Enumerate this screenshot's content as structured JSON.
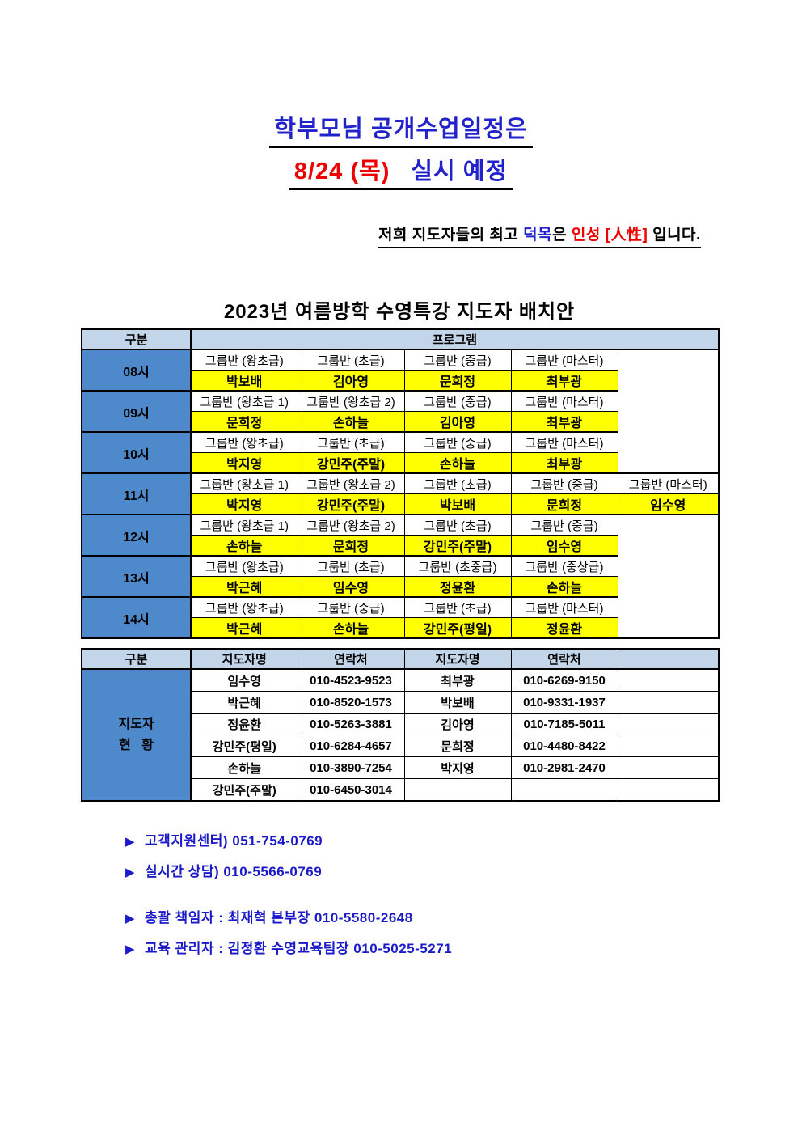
{
  "colors": {
    "title_blue": "#2222CC",
    "title_red": "#EE0000",
    "note_blue": "#1A1AC8",
    "time_cell_blue": "#4E89CB",
    "header_light_blue": "#C3D5E8",
    "highlight_yellow": "#FFFF00"
  },
  "header": {
    "title_line1": "학부모님 공개수업일정은",
    "title_line2_red": "8/24 (목)",
    "title_line2_blue": "실시 예정",
    "subtitle": {
      "p1": "저희 지도자들의 최고 ",
      "p2": "덕목",
      "p3": "은 ",
      "p4": "인성",
      "p5": " [人性] ",
      "p6": "입니다."
    }
  },
  "table_title": "2023년 여름방학 수영특강 지도자 배치안",
  "schedule_table": {
    "header_gubun": "구분",
    "header_program": "프로그램",
    "rows": [
      {
        "time": "08시",
        "classes": [
          "그룹반 (왕초급)",
          "그룹반 (초급)",
          "그룹반 (중급)",
          "그룹반 (마스터)"
        ],
        "teachers": [
          "박보배",
          "김아영",
          "문희정",
          "최부광"
        ]
      },
      {
        "time": "09시",
        "classes": [
          "그룹반 (왕초급 1)",
          "그룹반 (왕초급 2)",
          "그룹반 (중급)",
          "그룹반 (마스터)"
        ],
        "teachers": [
          "문희정",
          "손하늘",
          "김아영",
          "최부광"
        ]
      },
      {
        "time": "10시",
        "classes": [
          "그룹반 (왕초급)",
          "그룹반 (초급)",
          "그룹반 (중급)",
          "그룹반 (마스터)"
        ],
        "teachers": [
          "박지영",
          "강민주(주말)",
          "손하늘",
          "최부광"
        ]
      },
      {
        "time": "11시",
        "classes": [
          "그룹반 (왕초급 1)",
          "그룹반 (왕초급 2)",
          "그룹반 (초급)",
          "그룹반 (중급)",
          "그룹반 (마스터)"
        ],
        "teachers": [
          "박지영",
          "강민주(주말)",
          "박보배",
          "문희정",
          "임수영"
        ]
      },
      {
        "time": "12시",
        "classes": [
          "그룹반 (왕초급 1)",
          "그룹반 (왕초급 2)",
          "그룹반 (초급)",
          "그룹반 (중급)"
        ],
        "teachers": [
          "손하늘",
          "문희정",
          "강민주(주말)",
          "임수영"
        ]
      },
      {
        "time": "13시",
        "classes": [
          "그룹반 (왕초급)",
          "그룹반 (초급)",
          "그룹반 (초중급)",
          "그룹반 (중상급)"
        ],
        "teachers": [
          "박근혜",
          "임수영",
          "정윤환",
          "손하늘"
        ]
      },
      {
        "time": "14시",
        "classes": [
          "그룹반 (왕초급)",
          "그룹반 (중급)",
          "그룹반 (초급)",
          "그룹반 (마스터)"
        ],
        "teachers": [
          "박근혜",
          "손하늘",
          "강민주(평일)",
          "정윤환"
        ]
      }
    ]
  },
  "contact_table": {
    "headers": [
      "구분",
      "지도자명",
      "연락처",
      "지도자명",
      "연락처",
      ""
    ],
    "row_label_line1": "지도자",
    "row_label_line2": "현   황",
    "rows": [
      [
        "임수영",
        "010-4523-9523",
        "최부광",
        "010-6269-9150"
      ],
      [
        "박근혜",
        "010-8520-1573",
        "박보배",
        "010-9331-1937"
      ],
      [
        "정윤환",
        "010-5263-3881",
        "김아영",
        "010-7185-5011"
      ],
      [
        "강민주(평일)",
        "010-6284-4657",
        "문희정",
        "010-4480-8422"
      ],
      [
        "손하늘",
        "010-3890-7254",
        "박지영",
        "010-2981-2470"
      ],
      [
        "강민주(주말)",
        "010-6450-3014",
        "",
        ""
      ]
    ]
  },
  "notes": {
    "bullet": "▶",
    "items": [
      "고객지원센터) 051-754-0769",
      "실시간 상담) 010-5566-0769",
      "총괄 책임자 : 최재혁 본부장 010-5580-2648",
      "교육 관리자 : 김정환 수영교육팀장 010-5025-5271"
    ]
  }
}
